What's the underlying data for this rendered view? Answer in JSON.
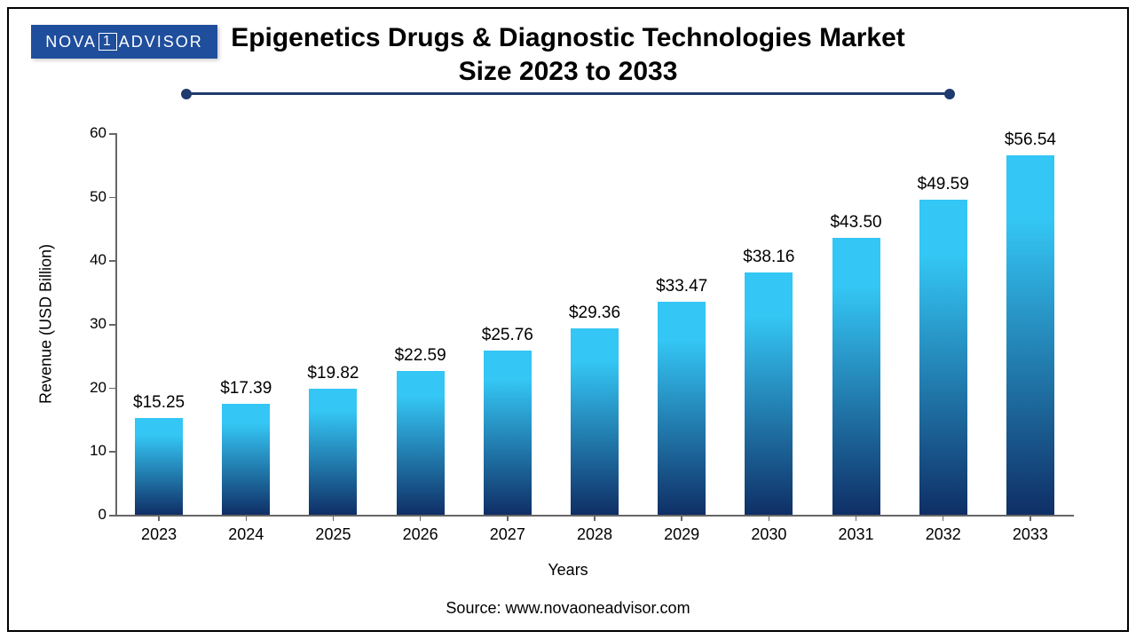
{
  "logo": {
    "text_left": "NOVA",
    "text_mid": "1",
    "text_right": "ADVISOR",
    "bg_color": "#1f4e9c",
    "text_color": "#ffffff"
  },
  "title": {
    "line1": "Epigenetics Drugs & Diagnostic Technologies Market",
    "line2": "Size 2023 to 2033",
    "fontsize": 30,
    "color": "#000000"
  },
  "divider": {
    "color": "#1f3a6e",
    "thickness": 3
  },
  "chart": {
    "type": "bar",
    "categories": [
      "2023",
      "2024",
      "2025",
      "2026",
      "2027",
      "2028",
      "2029",
      "2030",
      "2031",
      "2032",
      "2033"
    ],
    "values": [
      15.25,
      17.39,
      19.82,
      22.59,
      25.76,
      29.36,
      33.47,
      38.16,
      43.5,
      49.59,
      56.54
    ],
    "value_labels": [
      "$15.25",
      "$17.39",
      "$19.82",
      "$22.59",
      "$25.76",
      "$29.36",
      "$33.47",
      "$38.16",
      "$43.50",
      "$49.59",
      "$56.54"
    ],
    "bar_gradient_top": "#34c6f4",
    "bar_gradient_bottom": "#0f2f66",
    "ylim": [
      0,
      60
    ],
    "yticks": [
      0,
      10,
      20,
      30,
      40,
      50,
      60
    ],
    "ylabel": "Revenue (USD Billion)",
    "xlabel": "Years",
    "axis_color": "#666666",
    "tick_fontsize": 17,
    "label_fontsize": 18,
    "value_label_fontsize": 19,
    "bar_width_ratio": 0.55,
    "background_color": "#ffffff"
  },
  "source": {
    "text": "Source: www.novaoneadvisor.com",
    "fontsize": 18
  }
}
